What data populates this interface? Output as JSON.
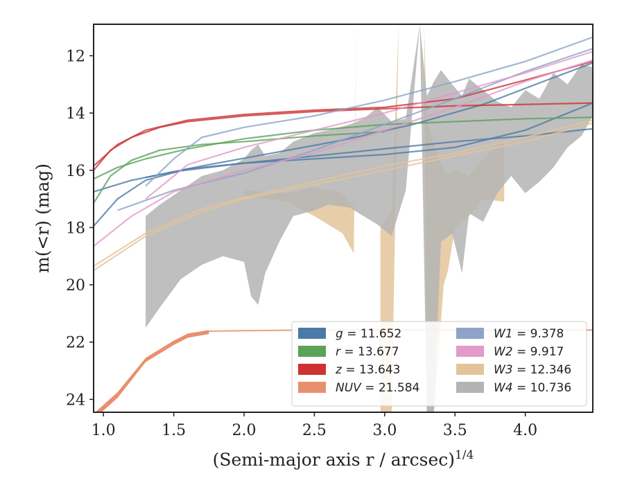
{
  "chart_data": {
    "type": "line",
    "xlabel": "(Semi-major axis r / arcsec)",
    "xlabel_exponent": "1/4",
    "ylabel": "m(<r) (mag)",
    "xlim": [
      0.93,
      4.48
    ],
    "ylim": [
      24.45,
      10.9
    ],
    "y_inverted": true,
    "xticks": [
      1.0,
      1.5,
      2.0,
      2.5,
      3.0,
      3.5,
      4.0
    ],
    "xtick_labels": [
      "1.0",
      "1.5",
      "2.0",
      "2.5",
      "3.0",
      "3.5",
      "4.0"
    ],
    "yticks": [
      12,
      14,
      16,
      18,
      20,
      22,
      24
    ],
    "ytick_labels": [
      "12",
      "14",
      "16",
      "18",
      "20",
      "22",
      "24"
    ],
    "grid": false,
    "legend_position": "lower-right",
    "legend_columns": 2,
    "series": [
      {
        "name": "g = 11.652",
        "label_var": "g",
        "label_value": "= 11.652",
        "color": "#4c7aa6",
        "kind": "curves",
        "curves": [
          [
            [
              0.93,
              16.75
            ],
            [
              1.2,
              16.35
            ],
            [
              1.5,
              16.05
            ],
            [
              2.0,
              15.75
            ],
            [
              2.5,
              15.5
            ],
            [
              3.0,
              15.25
            ],
            [
              3.5,
              15.0
            ],
            [
              4.0,
              14.8
            ],
            [
              4.48,
              14.55
            ]
          ],
          [
            [
              0.93,
              17.95
            ],
            [
              1.1,
              17.0
            ],
            [
              1.3,
              16.35
            ],
            [
              1.6,
              15.95
            ],
            [
              2.0,
              15.75
            ],
            [
              2.5,
              15.6
            ],
            [
              3.0,
              15.45
            ],
            [
              3.5,
              15.2
            ],
            [
              4.0,
              14.6
            ],
            [
              4.48,
              13.65
            ]
          ],
          [
            [
              1.3,
              16.25
            ],
            [
              1.7,
              15.85
            ],
            [
              2.2,
              15.4
            ],
            [
              2.7,
              14.95
            ],
            [
              3.2,
              14.4
            ],
            [
              3.7,
              13.7
            ],
            [
              4.1,
              12.95
            ],
            [
              4.48,
              12.25
            ]
          ]
        ]
      },
      {
        "name": "r = 13.677",
        "label_var": "r",
        "label_value": "= 13.677",
        "color": "#5aa35a",
        "kind": "curves",
        "curves": [
          [
            [
              0.93,
              16.3
            ],
            [
              1.1,
              15.9
            ],
            [
              1.3,
              15.6
            ],
            [
              1.6,
              15.25
            ],
            [
              2.0,
              14.9
            ],
            [
              2.5,
              14.6
            ],
            [
              3.0,
              14.4
            ],
            [
              3.5,
              14.3
            ],
            [
              4.0,
              14.2
            ],
            [
              4.48,
              14.15
            ]
          ],
          [
            [
              0.93,
              17.15
            ],
            [
              1.05,
              16.2
            ],
            [
              1.2,
              15.65
            ],
            [
              1.4,
              15.3
            ],
            [
              1.7,
              15.1
            ],
            [
              2.0,
              15.0
            ],
            [
              2.5,
              14.8
            ],
            [
              3.0,
              14.65
            ]
          ]
        ]
      },
      {
        "name": "z = 13.643",
        "label_var": "z",
        "label_value": "= 13.643",
        "color": "#cc3333",
        "kind": "curves",
        "curves": [
          [
            [
              0.93,
              16.0
            ],
            [
              1.05,
              15.3
            ],
            [
              1.2,
              14.85
            ],
            [
              1.4,
              14.5
            ],
            [
              1.6,
              14.3
            ],
            [
              2.0,
              14.1
            ],
            [
              2.5,
              13.95
            ],
            [
              3.0,
              13.85
            ],
            [
              3.5,
              13.75
            ],
            [
              4.0,
              13.7
            ],
            [
              4.48,
              13.65
            ]
          ],
          [
            [
              0.93,
              15.85
            ],
            [
              1.1,
              15.1
            ],
            [
              1.3,
              14.6
            ],
            [
              1.6,
              14.25
            ],
            [
              2.0,
              14.05
            ],
            [
              2.5,
              13.9
            ],
            [
              3.0,
              13.8
            ]
          ],
          [
            [
              3.0,
              13.8
            ],
            [
              3.5,
              13.5
            ],
            [
              4.0,
              12.85
            ],
            [
              4.48,
              12.2
            ]
          ]
        ]
      },
      {
        "name": "NUV = 21.584",
        "label_var": "NUV",
        "label_value": "= 21.584",
        "color": "#e8906d",
        "kind": "band",
        "band": [
          [
            0.93,
            24.7,
            24.5
          ],
          [
            1.1,
            23.95,
            23.75
          ],
          [
            1.3,
            22.7,
            22.55
          ],
          [
            1.5,
            22.1,
            21.95
          ],
          [
            1.6,
            21.85,
            21.7
          ],
          [
            1.75,
            21.72,
            21.58
          ]
        ],
        "curves": [
          [
            [
              1.75,
              21.62
            ],
            [
              2.0,
              21.6
            ],
            [
              2.5,
              21.58
            ],
            [
              3.0,
              21.58
            ],
            [
              3.5,
              21.58
            ],
            [
              4.0,
              21.58
            ],
            [
              4.48,
              21.58
            ]
          ]
        ]
      },
      {
        "name": "W1 = 9.378",
        "label_var": "W1",
        "label_value": "= 9.378",
        "color": "#8fa3c8",
        "kind": "curves",
        "curves": [
          [
            [
              1.3,
              16.55
            ],
            [
              1.5,
              15.6
            ],
            [
              1.7,
              14.85
            ],
            [
              2.0,
              14.5
            ],
            [
              2.5,
              14.1
            ],
            [
              3.0,
              13.55
            ],
            [
              3.5,
              12.9
            ],
            [
              4.0,
              12.2
            ],
            [
              4.48,
              11.35
            ]
          ],
          [
            [
              1.1,
              17.4
            ],
            [
              1.5,
              16.7
            ],
            [
              2.0,
              16.1
            ],
            [
              2.5,
              15.3
            ],
            [
              3.0,
              14.4
            ],
            [
              3.5,
              13.5
            ],
            [
              4.0,
              12.55
            ],
            [
              4.48,
              11.75
            ]
          ]
        ]
      },
      {
        "name": "W2 = 9.917",
        "label_var": "W2",
        "label_value": "= 9.917",
        "color": "#e19ac9",
        "kind": "curves",
        "curves": [
          [
            [
              1.3,
              17.0
            ],
            [
              1.6,
              15.8
            ],
            [
              2.0,
              15.2
            ],
            [
              2.5,
              14.6
            ],
            [
              3.0,
              14.0
            ],
            [
              3.5,
              13.3
            ],
            [
              4.0,
              12.6
            ],
            [
              4.48,
              11.85
            ]
          ],
          [
            [
              0.93,
              18.65
            ],
            [
              1.2,
              17.6
            ],
            [
              1.5,
              16.75
            ],
            [
              2.0,
              16.0
            ],
            [
              2.5,
              15.4
            ],
            [
              3.0,
              14.6
            ],
            [
              3.5,
              13.8
            ],
            [
              4.0,
              12.9
            ],
            [
              4.48,
              12.15
            ]
          ]
        ]
      },
      {
        "name": "W3 = 12.346",
        "label_var": "W3",
        "label_value": "= 12.346",
        "color": "#e3c49a",
        "kind": "band",
        "band": [
          [
            2.0,
            16.9,
            16.7
          ],
          [
            2.3,
            17.1,
            16.8
          ],
          [
            2.5,
            17.6,
            16.6
          ],
          [
            2.7,
            18.2,
            16.8
          ],
          [
            2.78,
            18.9,
            17.3
          ],
          [
            2.8,
            10.9,
            10.9
          ],
          [
            2.97,
            10.9,
            10.9
          ],
          [
            2.97,
            24.45,
            18.0
          ],
          [
            3.05,
            24.45,
            17.4
          ],
          [
            3.1,
            10.9,
            10.9
          ],
          [
            3.28,
            10.9,
            10.9
          ],
          [
            3.3,
            24.45,
            14.3
          ],
          [
            3.35,
            24.45,
            15.1
          ],
          [
            3.42,
            20.0,
            16.0
          ],
          [
            3.45,
            19.5,
            16.2
          ],
          [
            3.5,
            18.0,
            16.0
          ],
          [
            3.6,
            17.6,
            16.2
          ],
          [
            3.7,
            17.0,
            15.6
          ],
          [
            3.85,
            17.1,
            14.9
          ]
        ],
        "curves": [
          [
            [
              0.93,
              19.5
            ],
            [
              1.3,
              18.3
            ],
            [
              1.7,
              17.45
            ],
            [
              2.0,
              17.0
            ],
            [
              2.5,
              16.5
            ],
            [
              3.0,
              16.0
            ],
            [
              3.5,
              15.5
            ],
            [
              4.0,
              15.0
            ],
            [
              4.48,
              14.35
            ]
          ],
          [
            [
              0.93,
              19.35
            ],
            [
              1.3,
              18.2
            ],
            [
              1.7,
              17.35
            ],
            [
              2.0,
              16.95
            ],
            [
              2.5,
              16.4
            ],
            [
              3.0,
              15.85
            ],
            [
              3.5,
              15.4
            ],
            [
              4.0,
              14.85
            ],
            [
              4.48,
              14.25
            ]
          ]
        ]
      },
      {
        "name": "W4 = 10.736",
        "label_var": "W4",
        "label_value": "= 10.736",
        "color": "#b4b4b4",
        "kind": "band",
        "band": [
          [
            1.3,
            21.5,
            17.6
          ],
          [
            1.4,
            20.8,
            17.2
          ],
          [
            1.55,
            19.8,
            16.7
          ],
          [
            1.7,
            19.3,
            16.2
          ],
          [
            1.85,
            19.0,
            16.0
          ],
          [
            2.0,
            19.2,
            15.6
          ],
          [
            2.05,
            20.4,
            15.3
          ],
          [
            2.1,
            20.7,
            15.1
          ],
          [
            2.15,
            19.6,
            15.5
          ],
          [
            2.25,
            18.5,
            15.4
          ],
          [
            2.35,
            17.6,
            15.0
          ],
          [
            2.5,
            17.4,
            14.7
          ],
          [
            2.6,
            17.2,
            14.6
          ],
          [
            2.75,
            17.3,
            14.4
          ],
          [
            2.85,
            17.6,
            14.2
          ],
          [
            2.95,
            17.9,
            13.8
          ],
          [
            3.05,
            18.3,
            14.3
          ],
          [
            3.15,
            16.7,
            14.2
          ],
          [
            3.25,
            10.9,
            10.9
          ],
          [
            3.3,
            24.45,
            13.4
          ],
          [
            3.35,
            24.45,
            12.9
          ],
          [
            3.4,
            18.5,
            12.5
          ],
          [
            3.48,
            18.2,
            13.0
          ],
          [
            3.55,
            19.6,
            13.4
          ],
          [
            3.6,
            17.5,
            12.8
          ],
          [
            3.7,
            17.8,
            13.2
          ],
          [
            3.8,
            16.8,
            13.6
          ],
          [
            3.9,
            16.2,
            13.8
          ],
          [
            4.0,
            16.8,
            13.2
          ],
          [
            4.1,
            16.4,
            13.5
          ],
          [
            4.2,
            15.9,
            12.6
          ],
          [
            4.3,
            15.2,
            13.0
          ],
          [
            4.4,
            14.8,
            12.3
          ],
          [
            4.48,
            14.1,
            12.4
          ]
        ],
        "curves": []
      }
    ]
  }
}
